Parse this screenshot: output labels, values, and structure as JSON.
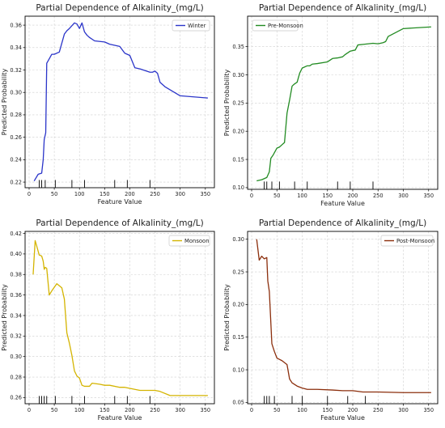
{
  "chart_data": [
    {
      "type": "line",
      "title": "Partial Dependence of Alkalinity_(mg/L)",
      "xlabel": "Feature Value",
      "ylabel": "Predicted Probability",
      "xlim": [
        -8,
        368
      ],
      "ylim": [
        0.215,
        0.368
      ],
      "xticks": [
        0,
        50,
        100,
        150,
        200,
        250,
        300,
        350
      ],
      "yticks": [
        0.22,
        0.24,
        0.26,
        0.28,
        0.3,
        0.32,
        0.34,
        0.36
      ],
      "ytick_decimals": 2,
      "grid": true,
      "legend": "top-right",
      "rug": [
        20,
        25,
        32,
        52,
        85,
        110,
        170,
        195,
        240
      ],
      "series": [
        {
          "name": "Winter",
          "color": "#2b35c9",
          "x": [
            10,
            18,
            25,
            28,
            30,
            33,
            35,
            40,
            45,
            50,
            60,
            70,
            75,
            80,
            90,
            95,
            100,
            105,
            110,
            115,
            120,
            130,
            150,
            160,
            170,
            180,
            190,
            200,
            210,
            220,
            240,
            245,
            250,
            255,
            260,
            270,
            300,
            355
          ],
          "y": [
            0.221,
            0.227,
            0.228,
            0.24,
            0.258,
            0.264,
            0.326,
            0.33,
            0.334,
            0.334,
            0.336,
            0.352,
            0.355,
            0.357,
            0.362,
            0.361,
            0.357,
            0.362,
            0.354,
            0.351,
            0.349,
            0.346,
            0.345,
            0.343,
            0.342,
            0.341,
            0.335,
            0.333,
            0.322,
            0.321,
            0.318,
            0.318,
            0.319,
            0.317,
            0.309,
            0.305,
            0.297,
            0.295
          ]
        }
      ]
    },
    {
      "type": "line",
      "title": "Partial Dependence of Alkalinity_(mg/L)",
      "xlabel": "Feature Value",
      "ylabel": "Predicted Probability",
      "xlim": [
        -8,
        368
      ],
      "ylim": [
        0.097,
        0.404
      ],
      "xticks": [
        0,
        50,
        100,
        150,
        200,
        250,
        300,
        350
      ],
      "yticks": [
        0.1,
        0.15,
        0.2,
        0.25,
        0.3,
        0.35
      ],
      "ytick_decimals": 2,
      "grid": true,
      "legend": "top-left",
      "rug": [
        25,
        30,
        40,
        55,
        85,
        110,
        170,
        195,
        240
      ],
      "series": [
        {
          "name": "Pre-Monsoon",
          "color": "#228b22",
          "x": [
            10,
            20,
            30,
            35,
            38,
            42,
            50,
            55,
            60,
            65,
            70,
            75,
            80,
            85,
            90,
            95,
            100,
            110,
            115,
            120,
            130,
            150,
            160,
            170,
            180,
            185,
            195,
            205,
            210,
            220,
            240,
            250,
            260,
            265,
            270,
            300,
            355
          ],
          "y": [
            0.112,
            0.114,
            0.118,
            0.128,
            0.152,
            0.157,
            0.17,
            0.172,
            0.176,
            0.18,
            0.232,
            0.255,
            0.28,
            0.284,
            0.287,
            0.303,
            0.312,
            0.316,
            0.316,
            0.319,
            0.32,
            0.323,
            0.329,
            0.33,
            0.332,
            0.336,
            0.342,
            0.344,
            0.353,
            0.354,
            0.356,
            0.355,
            0.357,
            0.359,
            0.368,
            0.382,
            0.385
          ]
        }
      ]
    },
    {
      "type": "line",
      "title": "Partial Dependence of Alkalinity_(mg/L)",
      "xlabel": "Feature Value",
      "ylabel": "Predicted Probability",
      "xlim": [
        -8,
        368
      ],
      "ylim": [
        0.254,
        0.422
      ],
      "xticks": [
        0,
        50,
        100,
        150,
        200,
        250,
        300,
        350
      ],
      "yticks": [
        0.26,
        0.28,
        0.3,
        0.32,
        0.34,
        0.36,
        0.38,
        0.4,
        0.42
      ],
      "ytick_decimals": 2,
      "grid": true,
      "legend": "top-right",
      "rug": [
        20,
        25,
        30,
        35,
        52,
        85,
        110,
        170,
        195,
        240
      ],
      "series": [
        {
          "name": "Monsoon",
          "color": "#d4b400",
          "x": [
            8,
            12,
            15,
            20,
            25,
            28,
            30,
            32,
            35,
            40,
            45,
            55,
            65,
            70,
            75,
            80,
            85,
            90,
            95,
            100,
            105,
            110,
            120,
            125,
            140,
            150,
            160,
            180,
            190,
            210,
            220,
            240,
            250,
            260,
            280,
            300,
            355
          ],
          "y": [
            0.38,
            0.413,
            0.408,
            0.399,
            0.398,
            0.393,
            0.385,
            0.387,
            0.386,
            0.36,
            0.364,
            0.371,
            0.367,
            0.356,
            0.323,
            0.313,
            0.301,
            0.286,
            0.281,
            0.279,
            0.272,
            0.271,
            0.271,
            0.274,
            0.273,
            0.272,
            0.272,
            0.27,
            0.27,
            0.268,
            0.267,
            0.267,
            0.267,
            0.266,
            0.262,
            0.262,
            0.262
          ]
        }
      ]
    },
    {
      "type": "line",
      "title": "Partial Dependence of Alkalinity_(mg/L)",
      "xlabel": "Feature Value",
      "ylabel": "Predicted Probability",
      "xlim": [
        -8,
        368
      ],
      "ylim": [
        0.048,
        0.312
      ],
      "xticks": [
        0,
        50,
        100,
        150,
        200,
        250,
        300,
        350
      ],
      "yticks": [
        0.05,
        0.1,
        0.15,
        0.2,
        0.25,
        0.3
      ],
      "ytick_decimals": 2,
      "grid": true,
      "legend": "top-right",
      "rug": [
        25,
        30,
        35,
        45,
        80,
        100,
        150,
        190,
        225
      ],
      "series": [
        {
          "name": "Post-Monsoon",
          "color": "#8b2e0c",
          "x": [
            10,
            15,
            20,
            25,
            30,
            32,
            35,
            40,
            45,
            50,
            55,
            60,
            70,
            75,
            80,
            90,
            100,
            110,
            130,
            160,
            180,
            200,
            220,
            250,
            300,
            355
          ],
          "y": [
            0.3,
            0.268,
            0.274,
            0.27,
            0.272,
            0.236,
            0.22,
            0.14,
            0.128,
            0.118,
            0.116,
            0.114,
            0.108,
            0.086,
            0.08,
            0.075,
            0.072,
            0.07,
            0.07,
            0.069,
            0.068,
            0.068,
            0.066,
            0.066,
            0.065,
            0.065
          ]
        }
      ]
    }
  ]
}
